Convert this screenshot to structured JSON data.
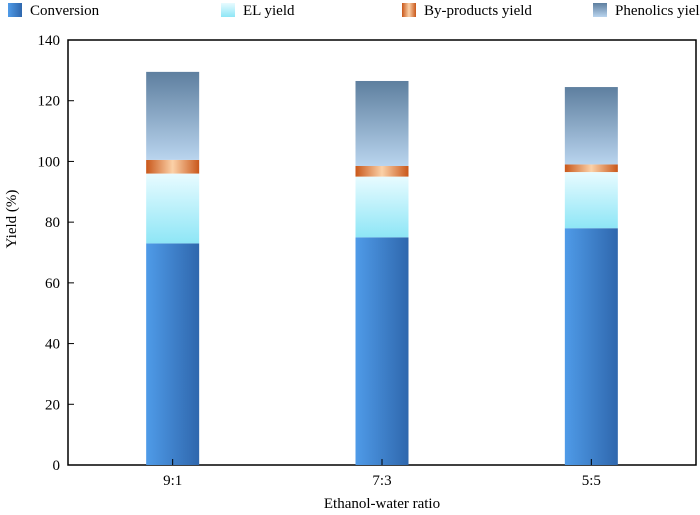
{
  "chart_data": {
    "type": "bar",
    "stacked": true,
    "categories": [
      "9:1",
      "7:3",
      "5:5"
    ],
    "series": [
      {
        "name": "Conversion",
        "values": [
          73,
          75,
          78
        ],
        "color": "#3f86d4"
      },
      {
        "name": "EL yield",
        "values": [
          23,
          20,
          18.5
        ],
        "color": "#a8ecf8"
      },
      {
        "name": "By-products yield",
        "values": [
          4.5,
          3.5,
          2.5
        ],
        "color": "#e0702a"
      },
      {
        "name": "Phenolics yield",
        "values": [
          29,
          28,
          25.5
        ],
        "color": "#6f93b8"
      }
    ],
    "xlabel": "Ethanol-water ratio",
    "ylabel": "Yield (%)",
    "ylim": [
      0,
      140
    ],
    "yticks": [
      "0",
      "20",
      "40",
      "60",
      "80",
      "100",
      "120",
      "140"
    ],
    "grid": false,
    "legend_position": "top"
  }
}
